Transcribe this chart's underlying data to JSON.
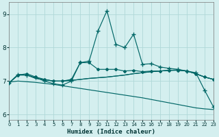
{
  "xlabel": "Humidex (Indice chaleur)",
  "bg_color": "#d4efef",
  "grid_color": "#b0d8d8",
  "line_color": "#006666",
  "xlim": [
    0,
    23
  ],
  "ylim": [
    5.85,
    9.35
  ],
  "x": [
    0,
    1,
    2,
    3,
    4,
    5,
    6,
    7,
    8,
    9,
    10,
    11,
    12,
    13,
    14,
    15,
    16,
    17,
    18,
    19,
    20,
    21,
    22,
    23
  ],
  "line_spike": [
    6.95,
    7.2,
    7.18,
    7.1,
    7.0,
    6.92,
    6.88,
    7.0,
    7.55,
    7.6,
    8.5,
    9.1,
    8.1,
    8.0,
    8.4,
    7.5,
    7.52,
    7.42,
    7.38,
    7.35,
    7.3,
    7.25,
    6.72,
    6.22
  ],
  "line_upper": [
    6.95,
    7.18,
    7.22,
    7.12,
    7.05,
    7.0,
    7.0,
    7.05,
    7.55,
    7.55,
    7.35,
    7.35,
    7.35,
    7.3,
    7.32,
    7.28,
    7.3,
    7.3,
    7.32,
    7.32,
    7.3,
    7.22,
    7.12,
    7.05
  ],
  "line_flat1": [
    6.95,
    7.18,
    7.18,
    7.08,
    7.04,
    7.0,
    7.0,
    7.02,
    7.05,
    7.08,
    7.1,
    7.12,
    7.15,
    7.18,
    7.22,
    7.25,
    7.28,
    7.3,
    7.32,
    7.33,
    7.3,
    7.22,
    7.12,
    7.05
  ],
  "line_flat2": [
    6.95,
    7.18,
    7.18,
    7.08,
    7.04,
    7.0,
    7.0,
    7.02,
    7.05,
    7.08,
    7.1,
    7.12,
    7.15,
    7.18,
    7.22,
    7.25,
    7.28,
    7.3,
    7.32,
    7.33,
    7.3,
    7.22,
    7.12,
    7.05
  ],
  "line_decline": [
    6.97,
    7.0,
    6.98,
    6.96,
    6.93,
    6.9,
    6.86,
    6.82,
    6.78,
    6.74,
    6.7,
    6.66,
    6.62,
    6.58,
    6.54,
    6.5,
    6.45,
    6.4,
    6.35,
    6.3,
    6.25,
    6.2,
    6.17,
    6.15
  ],
  "yticks": [
    6,
    7,
    8,
    9
  ],
  "spike_marker_x": [
    1,
    2,
    3,
    4,
    5,
    6,
    7,
    8,
    9,
    10,
    11,
    12,
    13,
    14,
    15,
    16,
    17,
    18,
    19,
    20,
    21,
    22,
    23
  ],
  "spike_marker_y": [
    7.2,
    7.18,
    7.1,
    7.0,
    6.92,
    6.88,
    7.0,
    7.55,
    7.6,
    8.5,
    9.1,
    8.1,
    8.0,
    8.4,
    7.5,
    7.52,
    7.42,
    7.38,
    7.35,
    7.3,
    7.25,
    6.72,
    6.22
  ]
}
